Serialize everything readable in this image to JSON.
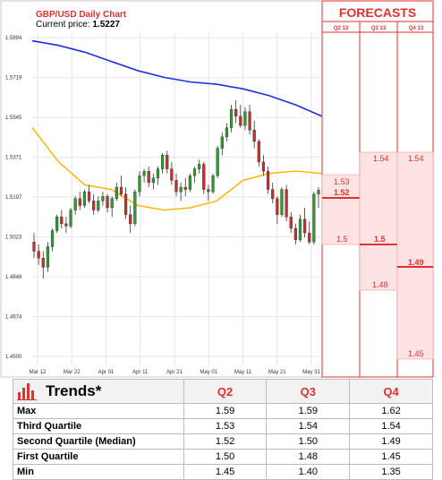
{
  "chart_data": {
    "type": "candlestick",
    "title": "GBP/USD Daily Chart",
    "current_price_label": "Current price:",
    "current_price": "1.5227",
    "y_ticks": [
      "1.5894",
      "1.5719",
      "1.5545",
      "1.5371",
      "1.5197",
      "1.5023",
      "1.4848",
      "1.4674",
      "1.4500"
    ],
    "ylim": [
      1.45,
      1.5894
    ],
    "x_ticks": [
      "Mar 12",
      "Mar 22",
      "Apr 01",
      "Apr 11",
      "Apr 21",
      "May 01",
      "May 11",
      "May 21",
      "May 31"
    ],
    "candles": [
      [
        1.5,
        1.504,
        1.493,
        1.496
      ],
      [
        1.496,
        1.499,
        1.49,
        1.493
      ],
      [
        1.493,
        1.496,
        1.484,
        1.489
      ],
      [
        1.489,
        1.5,
        1.487,
        1.498
      ],
      [
        1.498,
        1.506,
        1.496,
        1.505
      ],
      [
        1.505,
        1.512,
        1.504,
        1.511
      ],
      [
        1.511,
        1.514,
        1.506,
        1.508
      ],
      [
        1.508,
        1.511,
        1.504,
        1.507
      ],
      [
        1.507,
        1.515,
        1.506,
        1.514
      ],
      [
        1.514,
        1.52,
        1.512,
        1.519
      ],
      [
        1.519,
        1.522,
        1.514,
        1.516
      ],
      [
        1.516,
        1.523,
        1.515,
        1.522
      ],
      [
        1.522,
        1.525,
        1.517,
        1.518
      ],
      [
        1.518,
        1.521,
        1.512,
        1.514
      ],
      [
        1.514,
        1.52,
        1.513,
        1.518
      ],
      [
        1.518,
        1.522,
        1.516,
        1.52
      ],
      [
        1.52,
        1.521,
        1.513,
        1.515
      ],
      [
        1.515,
        1.52,
        1.511,
        1.519
      ],
      [
        1.519,
        1.526,
        1.518,
        1.524
      ],
      [
        1.524,
        1.529,
        1.52,
        1.521
      ],
      [
        1.521,
        1.524,
        1.51,
        1.512
      ],
      [
        1.512,
        1.516,
        1.504,
        1.508
      ],
      [
        1.508,
        1.523,
        1.507,
        1.522
      ],
      [
        1.522,
        1.531,
        1.52,
        1.529
      ],
      [
        1.529,
        1.532,
        1.526,
        1.531
      ],
      [
        1.531,
        1.533,
        1.524,
        1.526
      ],
      [
        1.526,
        1.53,
        1.523,
        1.528
      ],
      [
        1.528,
        1.533,
        1.525,
        1.532
      ],
      [
        1.532,
        1.539,
        1.53,
        1.538
      ],
      [
        1.538,
        1.54,
        1.53,
        1.532
      ],
      [
        1.532,
        1.535,
        1.525,
        1.527
      ],
      [
        1.527,
        1.53,
        1.52,
        1.522
      ],
      [
        1.522,
        1.526,
        1.518,
        1.524
      ],
      [
        1.524,
        1.528,
        1.52,
        1.523
      ],
      [
        1.523,
        1.53,
        1.522,
        1.529
      ],
      [
        1.529,
        1.533,
        1.526,
        1.532
      ],
      [
        1.532,
        1.536,
        1.53,
        1.534
      ],
      [
        1.534,
        1.535,
        1.521,
        1.523
      ],
      [
        1.523,
        1.525,
        1.518,
        1.522
      ],
      [
        1.522,
        1.53,
        1.521,
        1.529
      ],
      [
        1.529,
        1.542,
        1.528,
        1.541
      ],
      [
        1.541,
        1.548,
        1.538,
        1.546
      ],
      [
        1.546,
        1.552,
        1.544,
        1.55
      ],
      [
        1.55,
        1.56,
        1.548,
        1.558
      ],
      [
        1.558,
        1.562,
        1.552,
        1.555
      ],
      [
        1.555,
        1.56,
        1.55,
        1.551
      ],
      [
        1.551,
        1.559,
        1.549,
        1.557
      ],
      [
        1.557,
        1.56,
        1.547,
        1.549
      ],
      [
        1.549,
        1.553,
        1.541,
        1.544
      ],
      [
        1.544,
        1.545,
        1.533,
        1.535
      ],
      [
        1.535,
        1.538,
        1.529,
        1.531
      ],
      [
        1.531,
        1.533,
        1.521,
        1.523
      ],
      [
        1.523,
        1.526,
        1.517,
        1.519
      ],
      [
        1.519,
        1.52,
        1.508,
        1.512
      ],
      [
        1.512,
        1.524,
        1.511,
        1.523
      ],
      [
        1.523,
        1.525,
        1.509,
        1.511
      ],
      [
        1.511,
        1.513,
        1.504,
        1.506
      ],
      [
        1.506,
        1.508,
        1.499,
        1.501
      ],
      [
        1.501,
        1.512,
        1.5,
        1.51
      ],
      [
        1.51,
        1.515,
        1.502,
        1.504
      ],
      [
        1.504,
        1.509,
        1.499,
        1.5
      ],
      [
        1.5,
        1.522,
        1.499,
        1.521
      ],
      [
        1.521,
        1.524,
        1.515,
        1.5227
      ]
    ],
    "series": [
      {
        "color": "#1f2ee0",
        "values": [
          1.588,
          1.586,
          1.583,
          1.579,
          1.575,
          1.572,
          1.57,
          1.569,
          1.567,
          1.564,
          1.56,
          1.555
        ]
      },
      {
        "color": "#f5b400",
        "values": [
          1.55,
          1.535,
          1.525,
          1.523,
          1.516,
          1.514,
          1.515,
          1.518,
          1.527,
          1.53,
          1.531,
          1.53
        ]
      }
    ],
    "candle_colors": {
      "up": "#2e9b2e",
      "down": "#c43030"
    }
  },
  "forecasts": {
    "title": "FORECASTS",
    "columns": [
      "Q2 13",
      "Q3 13",
      "Q4 13"
    ],
    "q2": {
      "hi": "1.53",
      "cur": "1.52",
      "lo": "1.5"
    },
    "q3": {
      "hi": "1.54",
      "cur": "1.5",
      "lo": "1.48"
    },
    "q4": {
      "hi": "1.54",
      "cur": "1.49",
      "lo": "1.45"
    },
    "accent": "#e03030"
  },
  "table": {
    "title": "Trends*",
    "headers": [
      "Q2",
      "Q3",
      "Q4"
    ],
    "rows": [
      {
        "label": "Max",
        "values": [
          "1.59",
          "1.59",
          "1.62"
        ]
      },
      {
        "label": "Third Quartile",
        "values": [
          "1.53",
          "1.54",
          "1.54"
        ]
      },
      {
        "label": "Second Quartile (Median)",
        "values": [
          "1.52",
          "1.50",
          "1.49"
        ]
      },
      {
        "label": "First Quartile",
        "values": [
          "1.50",
          "1.48",
          "1.45"
        ]
      },
      {
        "label": "Min",
        "values": [
          "1.45",
          "1.40",
          "1.35"
        ]
      }
    ]
  }
}
